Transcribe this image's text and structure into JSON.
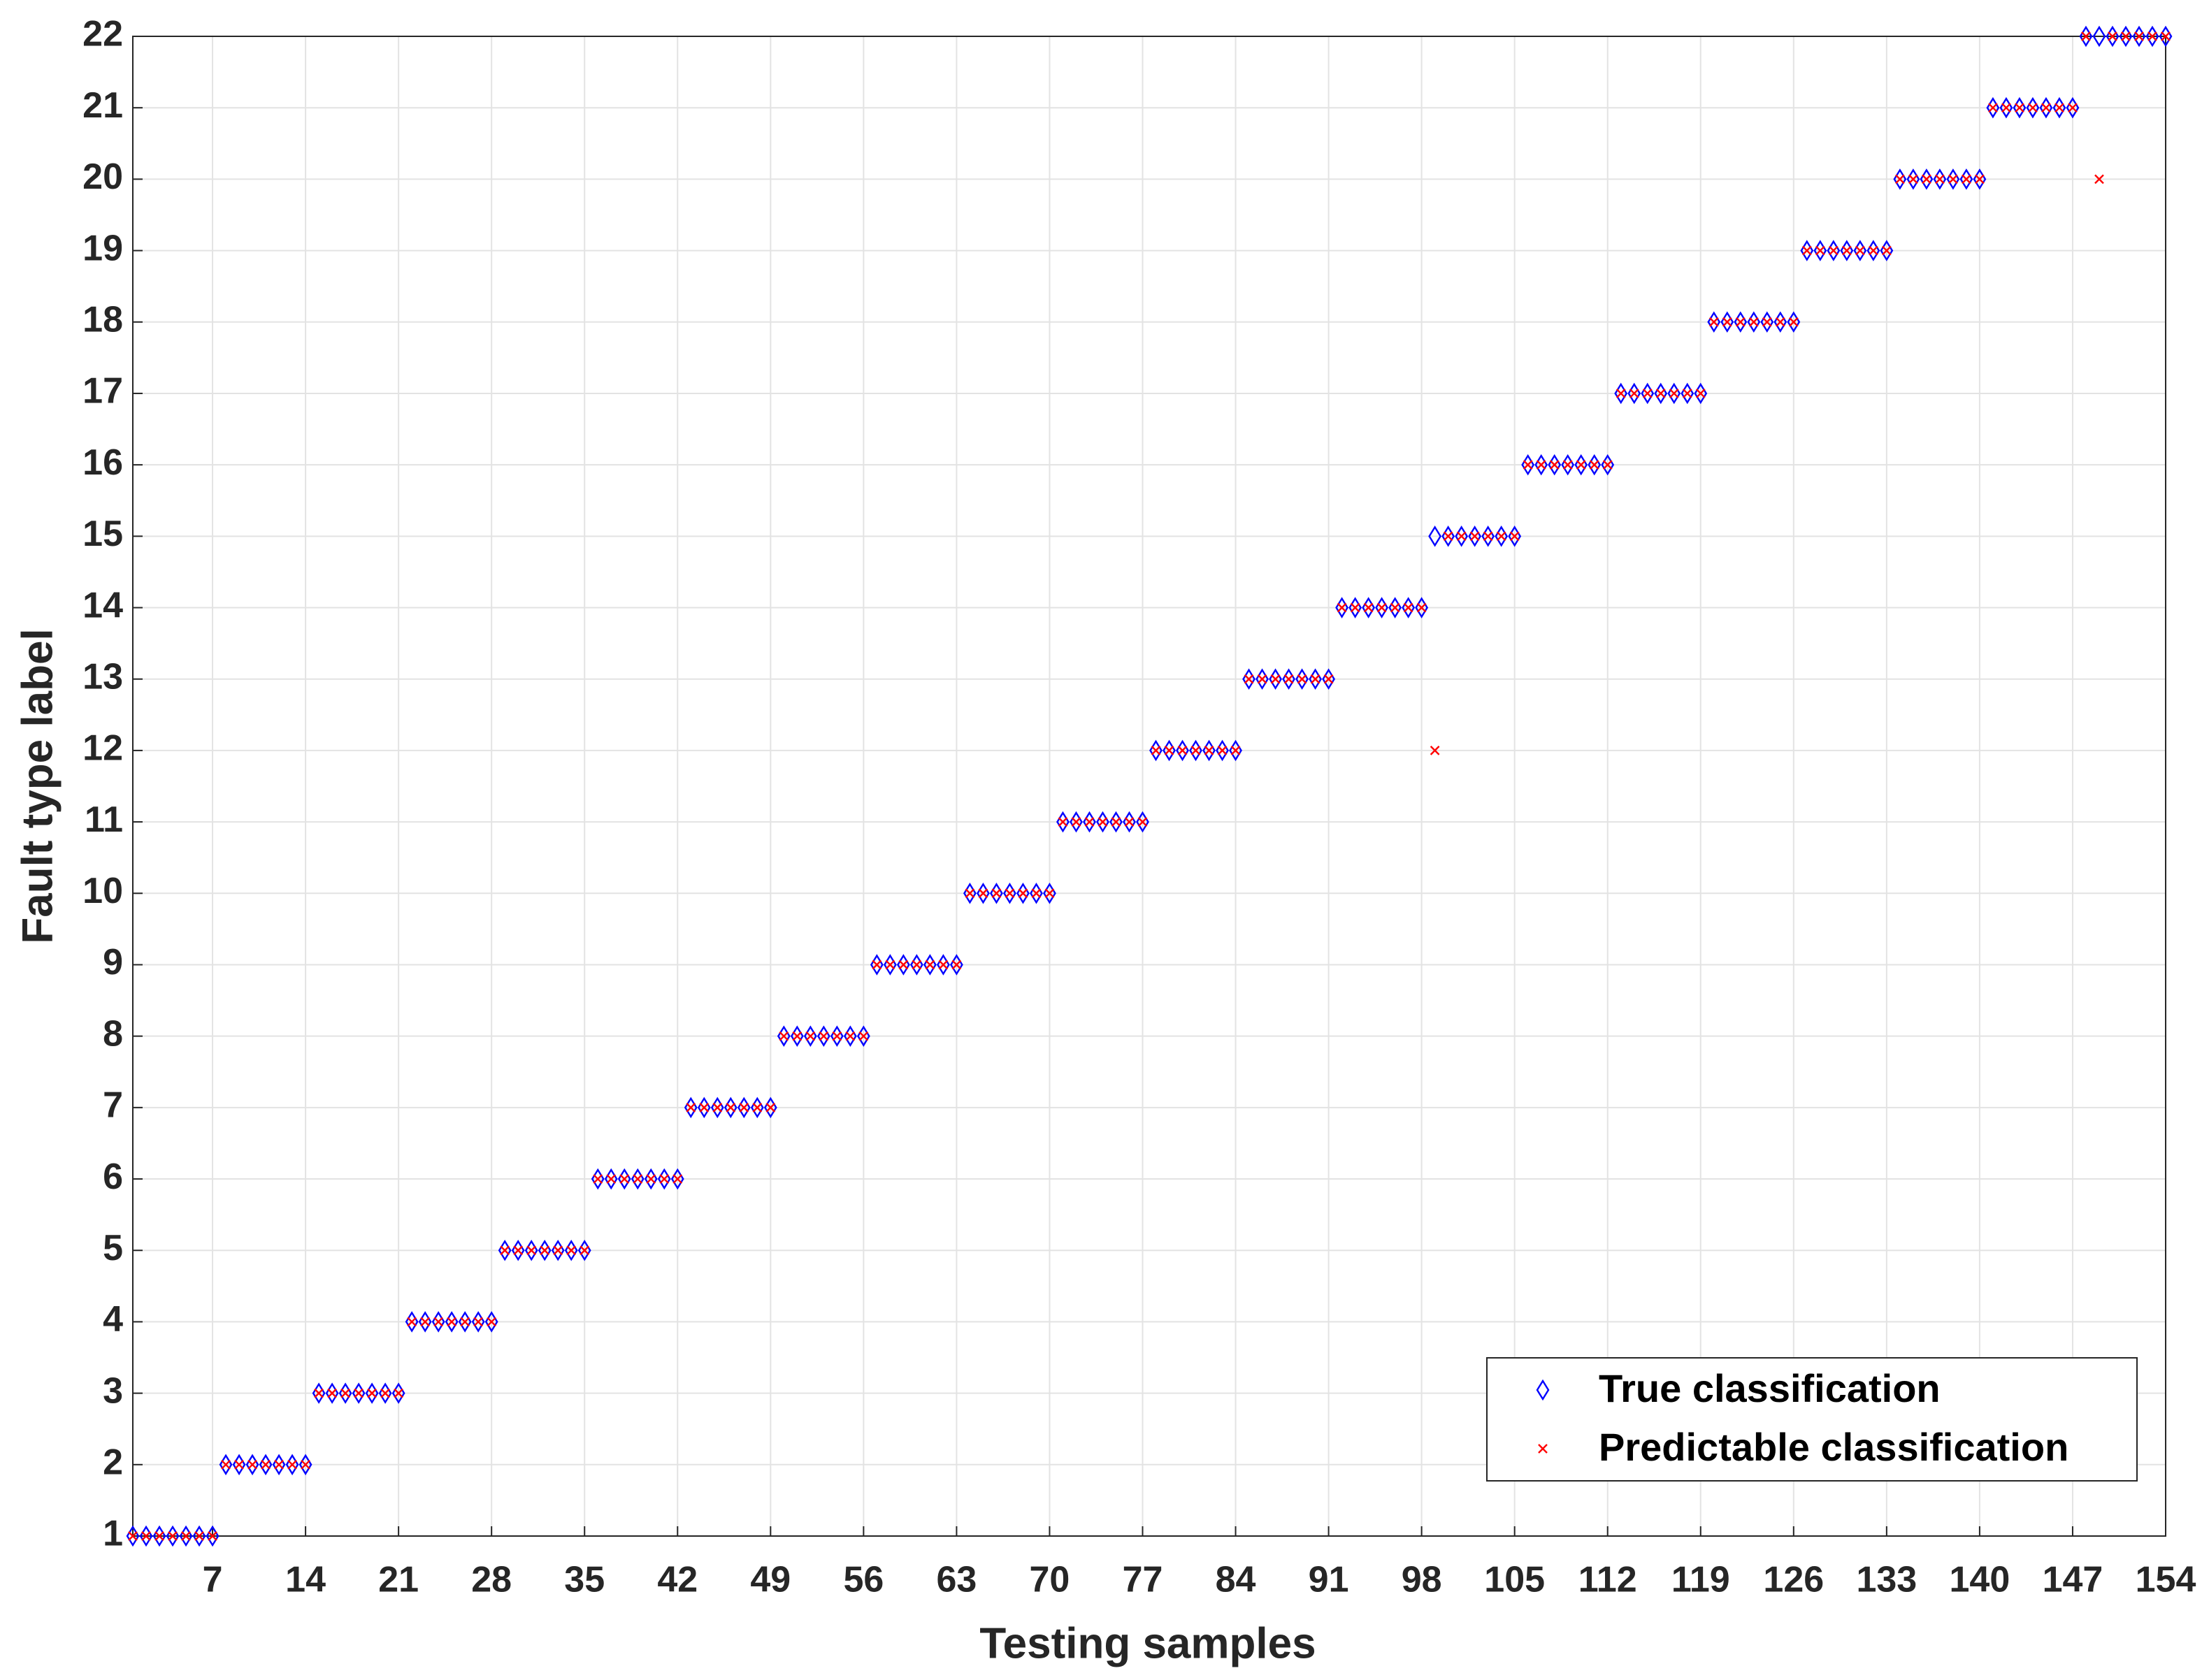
{
  "chart_data": {
    "type": "scatter",
    "x_label": "Testing samples",
    "y_label": "Fault type label",
    "x": [
      1,
      2,
      3,
      4,
      5,
      6,
      7,
      8,
      9,
      10,
      11,
      12,
      13,
      14,
      15,
      16,
      17,
      18,
      19,
      20,
      21,
      22,
      23,
      24,
      25,
      26,
      27,
      28,
      29,
      30,
      31,
      32,
      33,
      34,
      35,
      36,
      37,
      38,
      39,
      40,
      41,
      42,
      43,
      44,
      45,
      46,
      47,
      48,
      49,
      50,
      51,
      52,
      53,
      54,
      55,
      56,
      57,
      58,
      59,
      60,
      61,
      62,
      63,
      64,
      65,
      66,
      67,
      68,
      69,
      70,
      71,
      72,
      73,
      74,
      75,
      76,
      77,
      78,
      79,
      80,
      81,
      82,
      83,
      84,
      85,
      86,
      87,
      88,
      89,
      90,
      91,
      92,
      93,
      94,
      95,
      96,
      97,
      98,
      99,
      100,
      101,
      102,
      103,
      104,
      105,
      106,
      107,
      108,
      109,
      110,
      111,
      112,
      113,
      114,
      115,
      116,
      117,
      118,
      119,
      120,
      121,
      122,
      123,
      124,
      125,
      126,
      127,
      128,
      129,
      130,
      131,
      132,
      133,
      134,
      135,
      136,
      137,
      138,
      139,
      140,
      141,
      142,
      143,
      144,
      145,
      146,
      147,
      148,
      149,
      150,
      151,
      152,
      153,
      154
    ],
    "series": [
      {
        "name": "True classification",
        "color": "#0000ff",
        "marker": "diamond",
        "values": [
          1,
          1,
          1,
          1,
          1,
          1,
          1,
          2,
          2,
          2,
          2,
          2,
          2,
          2,
          3,
          3,
          3,
          3,
          3,
          3,
          3,
          4,
          4,
          4,
          4,
          4,
          4,
          4,
          5,
          5,
          5,
          5,
          5,
          5,
          5,
          6,
          6,
          6,
          6,
          6,
          6,
          6,
          7,
          7,
          7,
          7,
          7,
          7,
          7,
          8,
          8,
          8,
          8,
          8,
          8,
          8,
          9,
          9,
          9,
          9,
          9,
          9,
          9,
          10,
          10,
          10,
          10,
          10,
          10,
          10,
          11,
          11,
          11,
          11,
          11,
          11,
          11,
          12,
          12,
          12,
          12,
          12,
          12,
          12,
          13,
          13,
          13,
          13,
          13,
          13,
          13,
          14,
          14,
          14,
          14,
          14,
          14,
          14,
          15,
          15,
          15,
          15,
          15,
          15,
          15,
          16,
          16,
          16,
          16,
          16,
          16,
          16,
          17,
          17,
          17,
          17,
          17,
          17,
          17,
          18,
          18,
          18,
          18,
          18,
          18,
          18,
          19,
          19,
          19,
          19,
          19,
          19,
          19,
          20,
          20,
          20,
          20,
          20,
          20,
          20,
          21,
          21,
          21,
          21,
          21,
          21,
          21,
          22,
          22,
          22,
          22,
          22,
          22,
          22
        ]
      },
      {
        "name": "Predictable classification",
        "color": "#ff0000",
        "marker": "x",
        "values": [
          1,
          1,
          1,
          1,
          1,
          1,
          1,
          2,
          2,
          2,
          2,
          2,
          2,
          2,
          3,
          3,
          3,
          3,
          3,
          3,
          3,
          4,
          4,
          4,
          4,
          4,
          4,
          4,
          5,
          5,
          5,
          5,
          5,
          5,
          5,
          6,
          6,
          6,
          6,
          6,
          6,
          6,
          7,
          7,
          7,
          7,
          7,
          7,
          7,
          8,
          8,
          8,
          8,
          8,
          8,
          8,
          9,
          9,
          9,
          9,
          9,
          9,
          9,
          10,
          10,
          10,
          10,
          10,
          10,
          10,
          11,
          11,
          11,
          11,
          11,
          11,
          11,
          12,
          12,
          12,
          12,
          12,
          12,
          12,
          13,
          13,
          13,
          13,
          13,
          13,
          13,
          14,
          14,
          14,
          14,
          14,
          14,
          14,
          12,
          15,
          15,
          15,
          15,
          15,
          15,
          16,
          16,
          16,
          16,
          16,
          16,
          16,
          17,
          17,
          17,
          17,
          17,
          17,
          17,
          18,
          18,
          18,
          18,
          18,
          18,
          18,
          19,
          19,
          19,
          19,
          19,
          19,
          19,
          20,
          20,
          20,
          20,
          20,
          20,
          20,
          21,
          21,
          21,
          21,
          21,
          21,
          21,
          22,
          20,
          22,
          22,
          22,
          22,
          22
        ]
      }
    ],
    "xlim": [
      1,
      154
    ],
    "xticks": [
      7,
      14,
      21,
      28,
      35,
      42,
      49,
      56,
      63,
      70,
      77,
      84,
      91,
      98,
      105,
      112,
      119,
      126,
      133,
      140,
      147,
      154
    ],
    "ylim": [
      1,
      22
    ],
    "yticks": [
      1,
      2,
      3,
      4,
      5,
      6,
      7,
      8,
      9,
      10,
      11,
      12,
      13,
      14,
      15,
      16,
      17,
      18,
      19,
      20,
      21,
      22
    ],
    "grid": true,
    "legend": "lower right"
  }
}
